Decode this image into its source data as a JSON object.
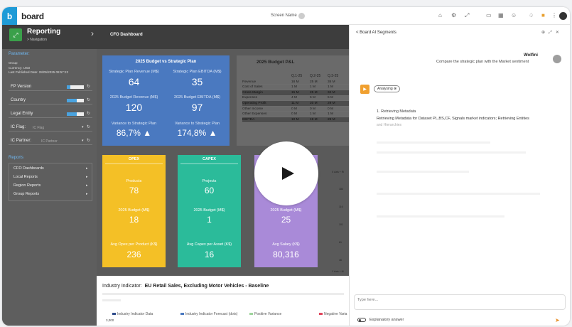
{
  "topbar": {
    "logo_letter": "b",
    "logo_text": "board",
    "screen_name": "Screen Name",
    "icons": [
      "home-icon",
      "settings-icon",
      "expand-icon",
      "calendar-icon",
      "grid-icon",
      "user-icon",
      "bell-icon",
      "bookmark-icon",
      "more-icon"
    ]
  },
  "reporting": {
    "title": "Reporting",
    "subtitle": "> Navigation",
    "crumb": "CFO Dashboard"
  },
  "params": {
    "title": "Parameter:",
    "group": "Group",
    "currency": "Currency: USD",
    "published": "Last Published Date:  28/05/2025 08:57:22",
    "fields": [
      {
        "label": "FP Version",
        "value": ""
      },
      {
        "label": "Country",
        "value": ""
      },
      {
        "label": "Legal Entity",
        "value": ""
      },
      {
        "label": "IC Flag:",
        "value": "IC Flag"
      },
      {
        "label": "IC Partner:",
        "value": "IC Partner"
      }
    ],
    "reports_title": "Reports",
    "reports": [
      "CFO Dashboards",
      "Local Reports",
      "Region Reports",
      "Group Reports"
    ]
  },
  "budget": {
    "title": "2025 Budget vs Strategic Plan",
    "cells": [
      {
        "label": "Strategic Plan Revenue (M$)",
        "value": "64"
      },
      {
        "label": "Strategic Plan EBITDA (M$)",
        "value": "35"
      },
      {
        "label": "2025 Budget Revenue (M$)",
        "value": "120"
      },
      {
        "label": "2025 Budget EBITDA (M$)",
        "value": "97"
      },
      {
        "label": "Variance to Strategic Plan",
        "value": "86,7% ▲"
      },
      {
        "label": "Variance to Strategic Plan",
        "value": "174,8% ▲"
      }
    ]
  },
  "pl": {
    "title": "2025 Budget P&L",
    "columns": [
      "Q.1-25",
      "Q.2-25",
      "Q.3-25"
    ],
    "rows": [
      {
        "name": "Revenue",
        "q1": "16 M",
        "q2": "25 M",
        "q3": "35 M",
        "dark": false
      },
      {
        "name": "Cost of Sales",
        "q1": "1 M",
        "q2": "1 M",
        "q3": "1 M",
        "dark": false
      },
      {
        "name": "Gross Margin",
        "q1": "15 M",
        "q2": "25 M",
        "q3": "34 M",
        "dark": true
      },
      {
        "name": "Expenses",
        "q1": "4 M",
        "q2": "5 M",
        "q3": "5 M",
        "dark": false
      },
      {
        "name": "Operating Profit",
        "q1": "11 M",
        "q2": "20 M",
        "q3": "29 M",
        "dark": true
      },
      {
        "name": "Other Income",
        "q1": "0 M",
        "q2": "0 M",
        "q3": "0 M",
        "dark": false
      },
      {
        "name": "Other Expenses",
        "q1": "0 M",
        "q2": "1 M",
        "q3": "1 M",
        "dark": false
      },
      {
        "name": "EBITDA",
        "q1": "10 M",
        "q2": "19 M",
        "q3": "29 M",
        "dark": true
      }
    ]
  },
  "cards": [
    {
      "title": "OPEX",
      "l1": "Products",
      "v1": "78",
      "l2": "2025 Budget (M$)",
      "v2": "18",
      "l3": "Avg Opex per Product (K$)",
      "v3": "236",
      "color": "#f4c026"
    },
    {
      "title": "CAPEX",
      "l1": "Projects",
      "v1": "60",
      "l2": "2025 Budget (M$)",
      "v2": "1",
      "l3": "Avg Capex per Asset (K$)",
      "v3": "16",
      "color": "#2bbb9a"
    },
    {
      "title": "",
      "l1": "",
      "v1": "",
      "l2": "2025 Budget (M$)",
      "v2": "25",
      "l3": "Avg Salary (K$)",
      "v3": "80,316",
      "color": "#a98ad8"
    }
  ],
  "axis": {
    "top_label": "X Axis + Ri",
    "ticks": [
      "184",
      "116",
      "101",
      "61",
      "46"
    ],
    "bottom_label": "Y Axis + M"
  },
  "industry": {
    "title_prefix": "Industry Indicator:",
    "title_main": "EU Retail Sales, Excluding Motor Vehicles - Baseline",
    "legend": [
      "Industry Indicator Data",
      "Industry Indicator Forecast (dots)",
      "Positive Variance",
      "Negative Varia"
    ],
    "legend_colors": [
      "#2f4c8c",
      "#4a79c0",
      "#9ed49c",
      "#e0455c"
    ],
    "y_tick": "3,000"
  },
  "ai": {
    "header": "< Board AI Segments",
    "user_name": "Wolfini",
    "user_message": "Compare the strategic plan with the Market sentiment",
    "status": "Analysing",
    "step_title": "1. Retrieving Metadata",
    "step_detail": "Retrieving Metadata for Dataset PL,BS,CF, Signals market indicators; Retrieving Entities",
    "step_detail2": "and Hierarchies",
    "input_placeholder": "Type here...",
    "toggle_label": "Explanatory answer"
  }
}
